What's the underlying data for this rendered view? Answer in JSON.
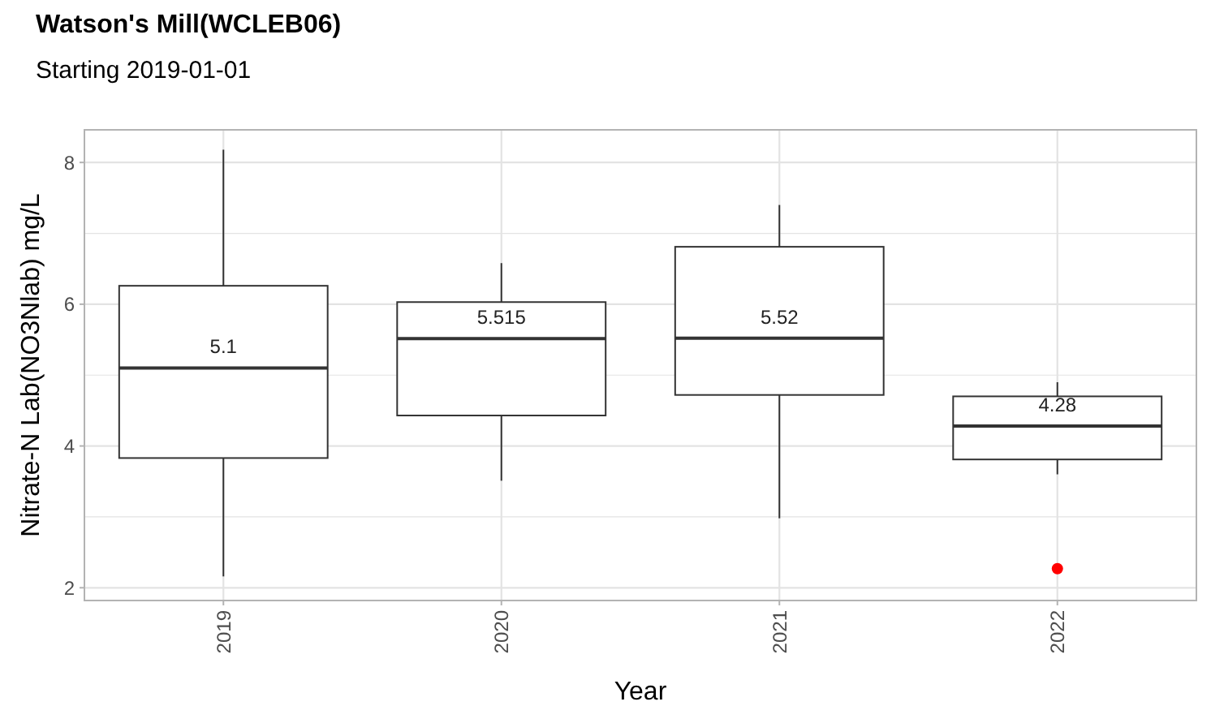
{
  "chart_data": {
    "type": "box",
    "title": "Watson's Mill(WCLEB06)",
    "subtitle": "Starting 2019-01-01",
    "xlabel": "Year",
    "ylabel": "Nitrate-N Lab(NO3Nlab) mg/L",
    "categories": [
      "2019",
      "2020",
      "2021",
      "2022"
    ],
    "boxes": [
      {
        "low": 2.16,
        "q1": 3.83,
        "median": 5.1,
        "q3": 6.26,
        "high": 8.18
      },
      {
        "low": 3.51,
        "q1": 4.43,
        "median": 5.515,
        "q3": 6.03,
        "high": 6.58
      },
      {
        "low": 2.98,
        "q1": 4.72,
        "median": 5.52,
        "q3": 6.81,
        "high": 7.4
      },
      {
        "low": 3.6,
        "q1": 3.81,
        "median": 4.28,
        "q3": 4.7,
        "high": 4.9,
        "outliers": [
          2.27
        ]
      }
    ],
    "annotations": [
      {
        "text": "5.1",
        "x": "2019",
        "y": 5.1
      },
      {
        "text": "5.515",
        "x": "2020",
        "y": 5.515
      },
      {
        "text": "5.52",
        "x": "2021",
        "y": 5.52
      },
      {
        "text": "4.28",
        "x": "2022",
        "y": 4.28
      }
    ],
    "ylim": [
      1.82,
      8.46
    ],
    "yticks": [
      2,
      {
        "value": 3,
        "label": null
      },
      4,
      {
        "value": 5,
        "label": null
      },
      6,
      {
        "value": 7,
        "label": null
      },
      8
    ],
    "grid": true
  }
}
